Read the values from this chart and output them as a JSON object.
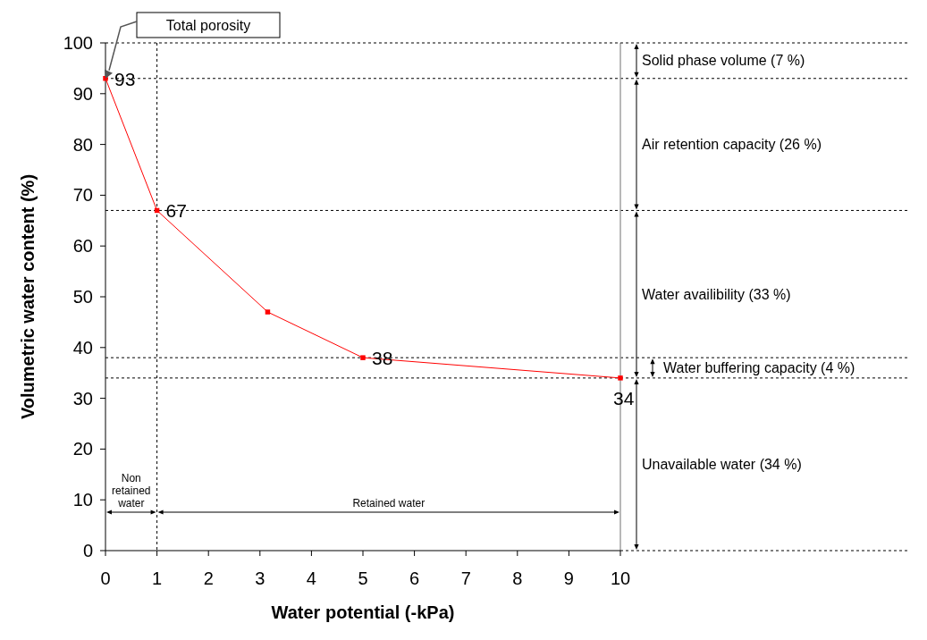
{
  "chart_data": {
    "type": "line",
    "xlabel": "Water potential (-kPa)",
    "ylabel": "Volumetric water content (%)",
    "x": [
      0,
      1,
      3.15,
      5,
      10
    ],
    "series": [
      {
        "color": "#ff0000",
        "values": [
          93,
          67,
          47,
          38,
          34
        ],
        "value_labels": [
          "93",
          "67",
          null,
          "38",
          "34"
        ]
      }
    ],
    "xlim": [
      0,
      10
    ],
    "xticks": [
      0,
      1,
      2,
      3,
      4,
      5,
      6,
      7,
      8,
      9,
      10
    ],
    "ylim": [
      0,
      100
    ],
    "yticks": [
      0,
      10,
      20,
      30,
      40,
      50,
      60,
      70,
      80,
      90,
      100
    ],
    "marker": "square",
    "line_style": "solid",
    "ref_lines": [
      {
        "axis": "y",
        "value": 93,
        "label": null,
        "color": "#000000",
        "line_style": "dashed"
      },
      {
        "axis": "y",
        "value": 67,
        "label": null,
        "color": "#000000",
        "line_style": "dashed"
      },
      {
        "axis": "y",
        "value": 38,
        "label": null,
        "color": "#000000",
        "line_style": "dashed"
      },
      {
        "axis": "y",
        "value": 34,
        "label": null,
        "color": "#000000",
        "line_style": "dashed"
      },
      {
        "axis": "x",
        "value": 1,
        "label": null,
        "color": "#000000",
        "line_style": "dashed"
      },
      {
        "axis": "x",
        "value": 10,
        "label": null,
        "color": "#a0a0a0",
        "line_style": "solid"
      }
    ],
    "annotations": [
      "Total porosity",
      "Solid phase volume (7 %)",
      "Air retention capacity (26 %)",
      "Water availibility (33 %)",
      "Water buffering capacity (4 %)",
      "Unavailable water (34 %)",
      "Non retained water",
      "Retained water"
    ]
  }
}
